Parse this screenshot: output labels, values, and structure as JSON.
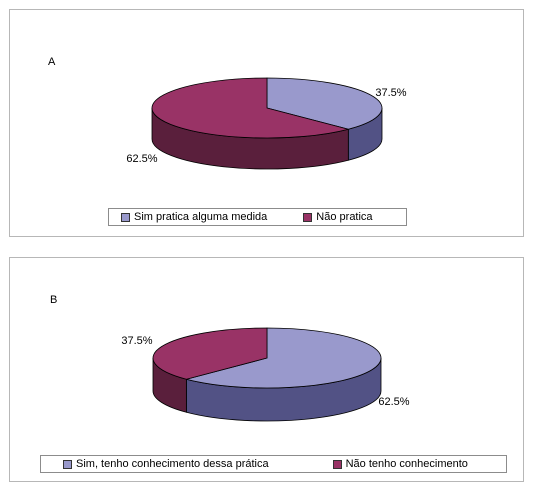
{
  "colors": {
    "slice1_top": "#9999cc",
    "slice1_side": "#525285",
    "slice2_top": "#993366",
    "slice2_side": "#5a1f3c",
    "outline": "#000000"
  },
  "chart_data": [
    {
      "type": "pie",
      "panel_label": "A",
      "slices": [
        {
          "label": "Sim pratica alguma medida",
          "value": 37.5,
          "data_label": "37.5%",
          "color": "#9999cc"
        },
        {
          "label": "Não pratica",
          "value": 62.5,
          "data_label": "62.5%",
          "color": "#993366"
        }
      ],
      "legend": {
        "position": "bottom",
        "entries": [
          "Sim pratica alguma medida",
          "Não pratica"
        ]
      }
    },
    {
      "type": "pie",
      "panel_label": "B",
      "slices": [
        {
          "label": "Sim, tenho conhecimento dessa prática",
          "value": 62.5,
          "data_label": "62.5%",
          "color": "#9999cc"
        },
        {
          "label": "Não tenho conhecimento",
          "value": 37.5,
          "data_label": "37.5%",
          "color": "#993366"
        }
      ],
      "legend": {
        "position": "bottom",
        "entries": [
          "Sim, tenho conhecimento dessa prática",
          "Não tenho conhecimento"
        ]
      }
    }
  ]
}
